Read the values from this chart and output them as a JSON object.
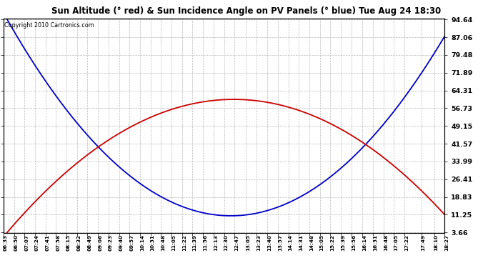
{
  "title": "Sun Altitude (° red) & Sun Incidence Angle on PV Panels (° blue) Tue Aug 24 18:30",
  "copyright_text": "Copyright 2010 Cartronics.com",
  "bg_color": "#ffffff",
  "grid_color": "#bbbbbb",
  "blue_color": "#0000cc",
  "red_color": "#cc0000",
  "yticks": [
    3.66,
    11.25,
    18.83,
    26.41,
    33.99,
    41.57,
    49.15,
    56.73,
    64.31,
    71.89,
    79.48,
    87.06,
    94.64
  ],
  "ymin": 3.66,
  "ymax": 94.64,
  "x_labels": [
    "06:33",
    "06:50",
    "07:07",
    "07:24",
    "07:41",
    "07:58",
    "08:15",
    "08:32",
    "08:49",
    "09:06",
    "09:23",
    "09:40",
    "09:57",
    "10:14",
    "10:31",
    "10:48",
    "11:05",
    "11:22",
    "11:39",
    "11:56",
    "12:13",
    "12:30",
    "12:47",
    "13:05",
    "13:23",
    "13:40",
    "13:57",
    "14:14",
    "14:31",
    "14:48",
    "15:05",
    "15:22",
    "15:39",
    "15:56",
    "16:14",
    "16:31",
    "16:48",
    "17:05",
    "17:22",
    "17:49",
    "18:10",
    "18:27"
  ],
  "blue_key_t": [
    399,
    767,
    1107
  ],
  "blue_key_v": [
    94.64,
    10.8,
    87.5
  ],
  "red_key_t": [
    399,
    763,
    1107
  ],
  "red_key_v": [
    3.66,
    60.5,
    11.25
  ]
}
